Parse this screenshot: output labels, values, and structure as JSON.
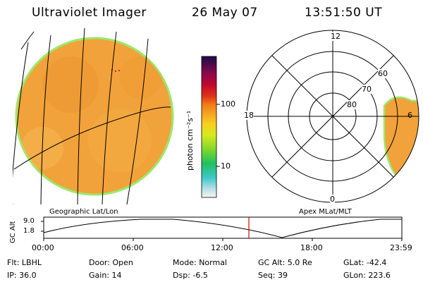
{
  "header": {
    "instrument": "Ultraviolet Imager",
    "date": "26 May 07",
    "time": "13:51:50 UT"
  },
  "colorbar": {
    "unit_label": "photon cm⁻²s⁻¹",
    "ticks": [
      "100",
      "10"
    ]
  },
  "polar_plot": {
    "mlt_labels": [
      "12",
      "18",
      "6",
      "0"
    ],
    "lat_labels": [
      "60",
      "70",
      "80"
    ]
  },
  "panel_captions": {
    "left": "Geographic Lat/Lon",
    "right": "Apex MLat/MLT"
  },
  "altitude_plot": {
    "ylabel": "GC Alt",
    "y_ticks": [
      "9.0",
      "1.8"
    ],
    "x_ticks": [
      "00:00",
      "06:00",
      "12:00",
      "18:00",
      "23:59"
    ]
  },
  "footer": {
    "rows": [
      [
        {
          "key": "Flt:",
          "value": "LBHL"
        },
        {
          "key": "Door:",
          "value": "Open"
        },
        {
          "key": "Mode:",
          "value": "Normal"
        },
        {
          "key": "GC Alt:",
          "value": "5.0 Re"
        },
        {
          "key": "GLat:",
          "value": "-42.4"
        }
      ],
      [
        {
          "key": "IP:",
          "value": "36.0"
        },
        {
          "key": "Gain:",
          "value": "14"
        },
        {
          "key": "Dsp:",
          "value": "-6.5"
        },
        {
          "key": "Seq:",
          "value": "39"
        },
        {
          "key": "GLon:",
          "value": "223.6"
        }
      ]
    ]
  },
  "colors": {
    "disk_fill": "#f2a23a",
    "disk_edge": "#9be86a",
    "cursor_line": "#dd0000"
  }
}
